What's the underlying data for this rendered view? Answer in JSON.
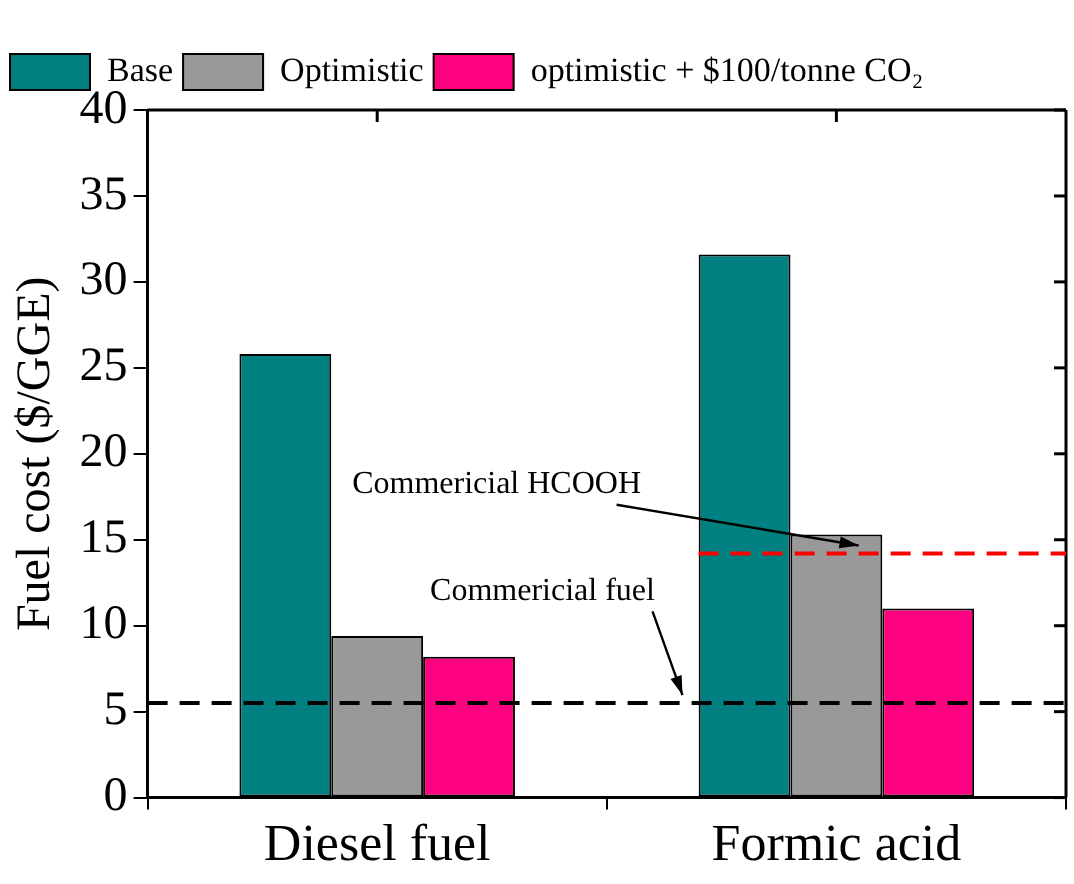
{
  "chart_data": {
    "type": "bar",
    "categories": [
      "Diesel fuel",
      "Formic acid"
    ],
    "ylabel": "Fuel cost ($/GGE)",
    "series": [
      {
        "name": "Base",
        "color": "#008080",
        "values": [
          25.8,
          31.6
        ]
      },
      {
        "name": "Optimistic",
        "color": "#999999",
        "values": [
          9.4,
          15.3
        ]
      },
      {
        "name": "optimistic + $100/tonne CO₂",
        "color": "#ff0080",
        "values": [
          8.2,
          11.0
        ]
      }
    ],
    "ylim": [
      0,
      40
    ],
    "yticks": [
      0,
      5,
      10,
      15,
      20,
      25,
      30,
      35,
      40
    ],
    "grid": false,
    "legend": "top left",
    "ref_lines": [
      {
        "axis": "y",
        "value": 5.5,
        "label": "Commericial fuel",
        "color": "#000000",
        "line_style": "dashed"
      },
      {
        "axis": "y",
        "value": 14.2,
        "label": "Commericial HCOOH",
        "color": "#ff0000",
        "line_style": "dashed"
      }
    ]
  }
}
